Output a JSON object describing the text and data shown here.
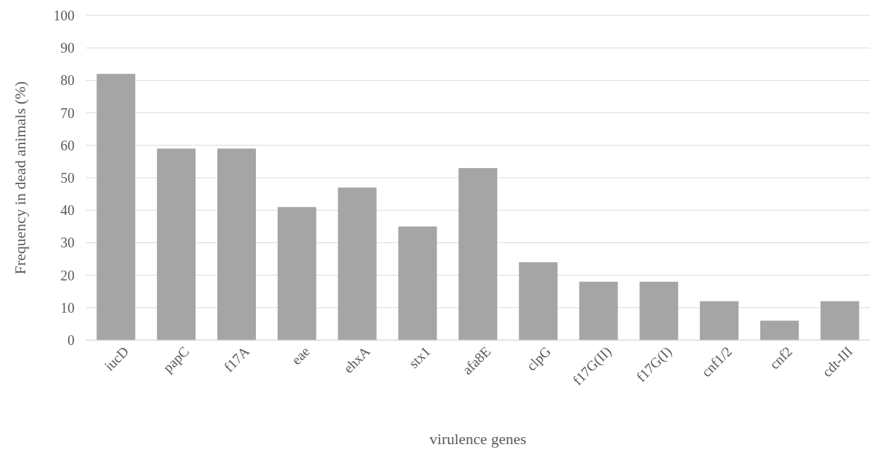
{
  "chart_data": {
    "type": "bar",
    "xlabel": "virulence genes",
    "ylabel": "Frequency in dead animals (%)",
    "categories": [
      "iucD",
      "papC",
      "f17A",
      "eae",
      "ehxA",
      "stx1",
      "afa8E",
      "clpG",
      "f17G(II)",
      "f17G(I)",
      "cnf1/2",
      "cnf2",
      "cdt-III"
    ],
    "values": [
      82,
      59,
      59,
      41,
      47,
      35,
      53,
      24,
      18,
      18,
      12,
      6,
      12
    ],
    "color": "#a5a5a5",
    "ylim": [
      0,
      100
    ],
    "yticks": [
      0,
      10,
      20,
      30,
      40,
      50,
      60,
      70,
      80,
      90,
      100
    ],
    "grid": "y"
  }
}
